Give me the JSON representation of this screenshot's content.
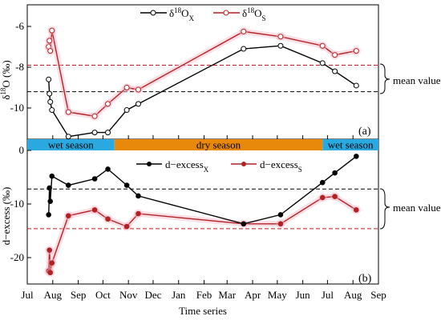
{
  "chart_data": [
    {
      "type": "line",
      "panel_label": "(a)",
      "ylabel": "δ18O (‰)",
      "ylim": [
        -12,
        -5
      ],
      "yticks": [
        -6,
        -8,
        -10
      ],
      "y_axis_inverted": true,
      "series": [
        {
          "name": "δ18OX",
          "color": "#000000",
          "marker": "open-circle",
          "x": [
            "2017-07-27",
            "2017-07-28",
            "2017-07-29",
            "2017-07-31",
            "2017-08-20",
            "2017-09-21",
            "2017-10-07",
            "2017-10-30",
            "2017-11-13",
            "2018-03-21",
            "2018-05-05",
            "2018-06-25",
            "2018-07-10",
            "2018-08-05"
          ],
          "y": [
            -8.6,
            -9.3,
            -9.7,
            -10.1,
            -11.4,
            -11.2,
            -11.2,
            -10.1,
            -9.8,
            -7.1,
            -6.95,
            -7.8,
            -8.2,
            -8.9
          ]
        },
        {
          "name": "δ18OS",
          "color": "#b22222",
          "marker": "open-circle",
          "x": [
            "2017-07-27",
            "2017-07-28",
            "2017-07-29",
            "2017-07-31",
            "2017-08-20",
            "2017-09-21",
            "2017-10-07",
            "2017-10-30",
            "2017-11-13",
            "2018-03-21",
            "2018-05-05",
            "2018-06-25",
            "2018-07-10",
            "2018-08-05"
          ],
          "y": [
            -7.0,
            -6.7,
            -7.2,
            -6.2,
            -10.2,
            -10.4,
            -9.8,
            -9.0,
            -9.1,
            -6.25,
            -6.5,
            -6.95,
            -7.4,
            -7.2
          ]
        }
      ],
      "annotation": "mean value",
      "mean_lines": [
        {
          "series": "δ18OX",
          "value": -9.2,
          "color": "#000000"
        },
        {
          "series": "δ18OS",
          "value": -7.9,
          "color": "#b22222"
        }
      ]
    },
    {
      "type": "line",
      "panel_label": "(b)",
      "ylabel": "d−excess (‰)",
      "xlabel": "Time series",
      "ylim": [
        -25,
        0
      ],
      "yticks": [
        0,
        -10,
        -20
      ],
      "series": [
        {
          "name": "d−excessX",
          "color": "#000000",
          "marker": "filled-circle",
          "x": [
            "2017-07-27",
            "2017-07-28",
            "2017-07-29",
            "2017-07-31",
            "2017-08-20",
            "2017-09-21",
            "2017-10-07",
            "2017-10-30",
            "2017-11-13",
            "2018-03-21",
            "2018-05-05",
            "2018-06-25",
            "2018-07-10",
            "2018-08-05"
          ],
          "y": [
            -12,
            -7,
            -9.5,
            -4.8,
            -6.5,
            -5.3,
            -3.5,
            -6.5,
            -8.5,
            -13.7,
            -12,
            -6,
            -4.2,
            -1.1
          ]
        },
        {
          "name": "d−excessS",
          "color": "#b22222",
          "marker": "filled-circle",
          "x": [
            "2017-07-27",
            "2017-07-28",
            "2017-07-29",
            "2017-07-31",
            "2017-08-20",
            "2017-09-21",
            "2017-10-07",
            "2017-10-30",
            "2017-11-13",
            "2018-03-21",
            "2018-05-05",
            "2018-06-25",
            "2018-07-10",
            "2018-08-05"
          ],
          "y": [
            -22.5,
            -18.6,
            -22.8,
            -21,
            -12.2,
            -11.1,
            -12.8,
            -14.2,
            -11.8,
            -13.7,
            -13.7,
            -8.8,
            -8.6,
            -11.1
          ]
        }
      ],
      "annotation": "mean value",
      "mean_lines": [
        {
          "series": "d−excessX",
          "value": -7.2,
          "color": "#000000"
        },
        {
          "series": "d−excessS",
          "value": -14.6,
          "color": "#b22222"
        }
      ]
    }
  ],
  "x_axis": {
    "ticks": [
      "Jul",
      "Aug",
      "Sep",
      "Oct",
      "Nov",
      "Dec",
      "Jan",
      "Feb",
      "Mar",
      "Apr",
      "May",
      "Jun",
      "Jul",
      "Aug",
      "Sep"
    ],
    "range": [
      "2017-07-01",
      "2018-09-01"
    ]
  },
  "seasons": [
    {
      "label": "wet season",
      "start": "2017-07-01",
      "end": "2017-10-15",
      "color": "#29a9e0"
    },
    {
      "label": "dry season",
      "start": "2017-10-15",
      "end": "2018-06-25",
      "color": "#e8890c"
    },
    {
      "label": "wet season",
      "start": "2018-06-25",
      "end": "2018-09-01",
      "color": "#29a9e0"
    }
  ],
  "legend_a": {
    "x_base": "δ",
    "x_sup": "18",
    "x_main": "O",
    "x_sub": "X",
    "s_base": "δ",
    "s_sup": "18",
    "s_main": "O",
    "s_sub": "S"
  },
  "legend_b": {
    "x_main": "d−excess",
    "x_sub": "X",
    "s_main": "d−excess",
    "s_sub": "S"
  },
  "ylabel_a": {
    "base": "δ",
    "sup": "18",
    "rest": "O (‰)"
  }
}
